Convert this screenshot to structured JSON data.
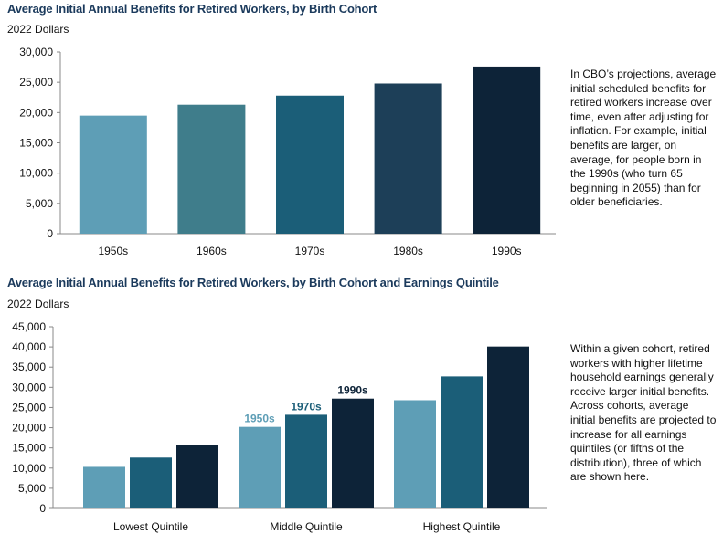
{
  "chart_data": [
    {
      "type": "bar",
      "title": "Average Initial Annual Benefits for Retired Workers, by Birth Cohort",
      "ylabel": "2022 Dollars",
      "categories": [
        "1950s",
        "1960s",
        "1970s",
        "1980s",
        "1990s"
      ],
      "values": [
        19500,
        21300,
        22800,
        24800,
        27600
      ],
      "ylim": [
        0,
        30000
      ],
      "yticks": [
        0,
        5000,
        10000,
        15000,
        20000,
        25000,
        30000
      ],
      "ytick_labels": [
        "0",
        "5,000",
        "10,000",
        "15,000",
        "20,000",
        "25,000",
        "30,000"
      ],
      "colors": [
        "#5e9eb6",
        "#3f7d8b",
        "#1b5e78",
        "#1d3f58",
        "#0d2338"
      ],
      "grid": false
    },
    {
      "type": "bar",
      "title": "Average Initial Annual Benefits for Retired Workers, by Birth Cohort and Earnings Quintile",
      "ylabel": "2022 Dollars",
      "categories": [
        "Lowest Quintile",
        "Middle Quintile",
        "Highest Quintile"
      ],
      "series": [
        {
          "name": "1950s",
          "values": [
            10300,
            20200,
            26800
          ],
          "color": "#5e9eb6"
        },
        {
          "name": "1970s",
          "values": [
            12600,
            23200,
            32700
          ],
          "color": "#1b5e78"
        },
        {
          "name": "1990s",
          "values": [
            15700,
            27200,
            40100
          ],
          "color": "#0d2338"
        }
      ],
      "ylim": [
        0,
        45000
      ],
      "yticks": [
        0,
        5000,
        10000,
        15000,
        20000,
        25000,
        30000,
        35000,
        40000,
        45000
      ],
      "ytick_labels": [
        "0",
        "5,000",
        "10,000",
        "15,000",
        "20,000",
        "25,000",
        "30,000",
        "35,000",
        "40,000",
        "45,000"
      ],
      "legend_placement": "inline labels above middle-quintile bars",
      "grid": false
    }
  ],
  "notes": {
    "top": "In CBO’s projections, average initial scheduled benefits for retired workers increase over time, even after adjusting for inflation. For example, initial benefits are larger, on average, for people born in the 1990s (who turn 65 beginning in 2055) than for older beneficiaries.",
    "bottom": "Within a given cohort, retired workers with higher lifetime household earnings generally receive larger initial benefits. Across cohorts, average initial benefits are projected to increase for all earnings quintiles (or fifths of the distribution), three of which are shown here."
  }
}
